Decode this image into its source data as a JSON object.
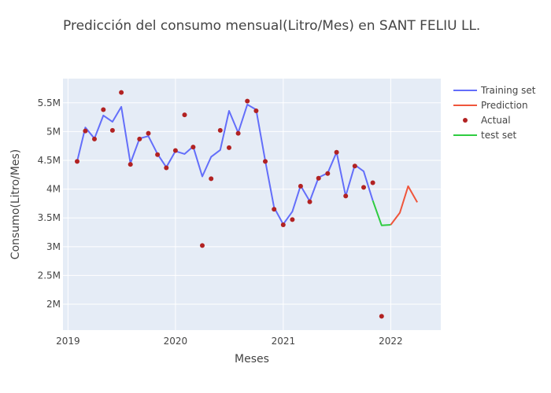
{
  "chart_data": {
    "type": "line",
    "title": "Predicción del consumo mensual(Litro/Mes) en SANT FELIU LL.",
    "xlabel": "Meses",
    "ylabel": "Consumo(Litro/Mes)",
    "x_ticks": [
      "2019",
      "2020",
      "2021",
      "2022"
    ],
    "y_ticks": [
      "2M",
      "2.5M",
      "3M",
      "3.5M",
      "4M",
      "4.5M",
      "5M",
      "5.5M"
    ],
    "y_tick_values": [
      2000000,
      2500000,
      3000000,
      3500000,
      4000000,
      4500000,
      5000000,
      5500000
    ],
    "xlim": [
      "2018-12-15",
      "2022-06-20"
    ],
    "ylim": [
      1550000,
      5920000
    ],
    "grid": true,
    "legend_position": "top-right",
    "series": [
      {
        "name": "Training set",
        "color": "#636efa",
        "mode": "line",
        "x": [
          "2019-02-01",
          "2019-03-01",
          "2019-04-01",
          "2019-05-01",
          "2019-06-01",
          "2019-07-01",
          "2019-08-01",
          "2019-09-01",
          "2019-10-01",
          "2019-11-01",
          "2019-12-01",
          "2020-01-01",
          "2020-02-01",
          "2020-03-01",
          "2020-04-01",
          "2020-05-01",
          "2020-06-01",
          "2020-07-01",
          "2020-08-01",
          "2020-09-01",
          "2020-10-01",
          "2020-11-01",
          "2020-12-01",
          "2021-01-01",
          "2021-02-01",
          "2021-03-01",
          "2021-04-01",
          "2021-05-01",
          "2021-06-01",
          "2021-07-01",
          "2021-08-01",
          "2021-09-01",
          "2021-10-01",
          "2021-11-01"
        ],
        "y": [
          4480000,
          5070000,
          4880000,
          5280000,
          5170000,
          5430000,
          4450000,
          4880000,
          4920000,
          4610000,
          4380000,
          4660000,
          4610000,
          4740000,
          4220000,
          4560000,
          4680000,
          5360000,
          4980000,
          5470000,
          5380000,
          4490000,
          3680000,
          3390000,
          3610000,
          4060000,
          3790000,
          4200000,
          4280000,
          4640000,
          3880000,
          4420000,
          4310000,
          3800000
        ]
      },
      {
        "name": "Prediction",
        "color": "#ef553b",
        "mode": "line",
        "x": [
          "2022-01-01",
          "2022-02-01",
          "2022-03-01",
          "2022-04-01"
        ],
        "y": [
          3380000,
          3590000,
          4050000,
          3770000
        ]
      },
      {
        "name": "Actual",
        "color": "#b22222",
        "mode": "markers",
        "x": [
          "2019-02-01",
          "2019-03-01",
          "2019-04-01",
          "2019-05-01",
          "2019-06-01",
          "2019-07-01",
          "2019-08-01",
          "2019-09-01",
          "2019-10-01",
          "2019-11-01",
          "2019-12-01",
          "2020-01-01",
          "2020-02-01",
          "2020-03-01",
          "2020-04-01",
          "2020-05-01",
          "2020-06-01",
          "2020-07-01",
          "2020-08-01",
          "2020-09-01",
          "2020-10-01",
          "2020-11-01",
          "2020-12-01",
          "2021-01-01",
          "2021-02-01",
          "2021-03-01",
          "2021-04-01",
          "2021-05-01",
          "2021-06-01",
          "2021-07-01",
          "2021-08-01",
          "2021-09-01",
          "2021-10-01",
          "2021-11-01",
          "2021-12-01"
        ],
        "y": [
          4480000,
          5010000,
          4870000,
          5380000,
          5020000,
          5680000,
          4430000,
          4870000,
          4970000,
          4600000,
          4370000,
          4670000,
          5290000,
          4730000,
          3020000,
          4180000,
          5020000,
          4720000,
          4970000,
          5530000,
          5360000,
          4480000,
          3650000,
          3380000,
          3470000,
          4050000,
          3780000,
          4190000,
          4270000,
          4640000,
          3880000,
          4400000,
          4030000,
          4110000,
          1790000
        ]
      },
      {
        "name": "test set",
        "color": "#2ecc40",
        "mode": "line",
        "x": [
          "2021-11-01",
          "2021-12-01",
          "2022-01-01"
        ],
        "y": [
          3800000,
          3370000,
          3380000
        ]
      }
    ]
  }
}
